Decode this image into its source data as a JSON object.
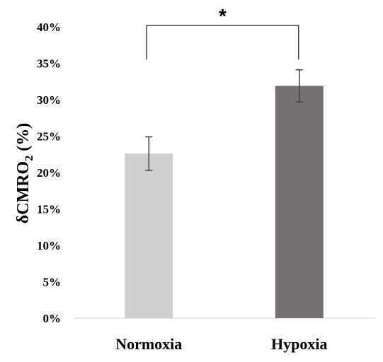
{
  "chart_data": {
    "type": "bar",
    "title": "",
    "xlabel": "",
    "ylabel": {
      "main": "δCMRO",
      "subscript": "2",
      "unit": " (%)"
    },
    "categories": [
      "Normoxia",
      "Hypoxia"
    ],
    "values": [
      22.6,
      31.9
    ],
    "error": [
      2.3,
      2.2
    ],
    "ylim": [
      0,
      40
    ],
    "yticks": [
      0,
      5,
      10,
      15,
      20,
      25,
      30,
      35,
      40
    ],
    "ytick_labels": [
      "0%",
      "5%",
      "10%",
      "15%",
      "20%",
      "25%",
      "30%",
      "35%",
      "40%"
    ],
    "colors": [
      "#d0cfcf",
      "#767171"
    ],
    "significance": {
      "from": 0,
      "to": 1,
      "label": "*",
      "bracket_bottom": 35.5,
      "bracket_top": 40.2
    },
    "grid": false,
    "legend": "none"
  }
}
